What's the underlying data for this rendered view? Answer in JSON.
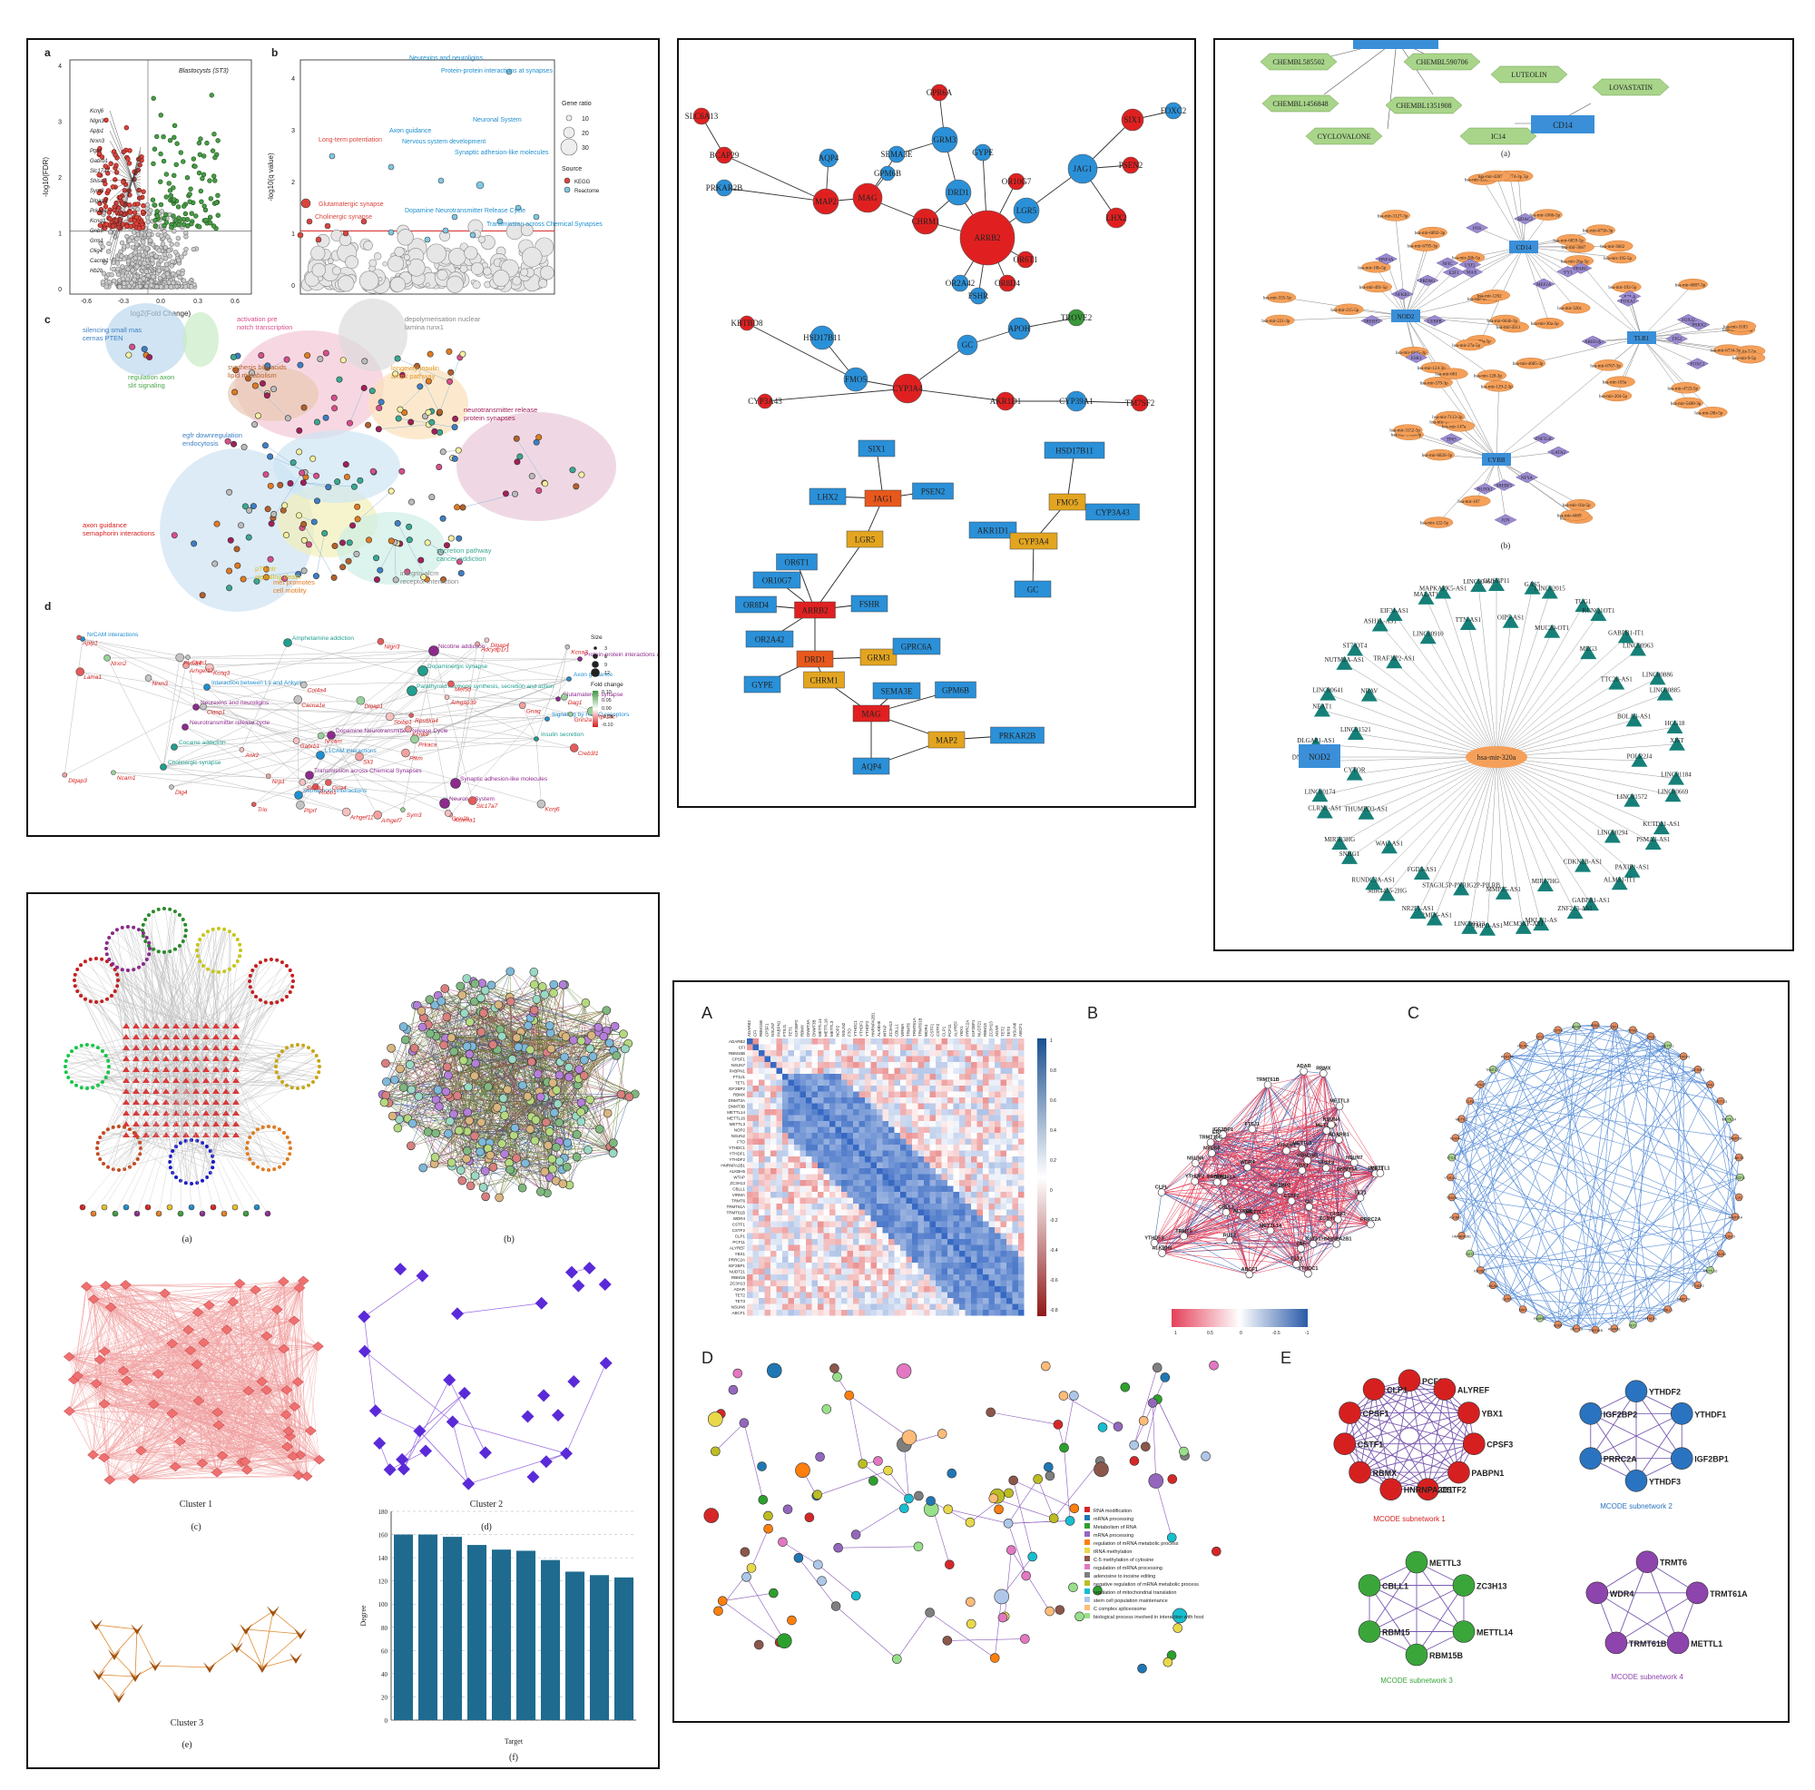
{
  "figure1": {
    "labels": {
      "a": "a",
      "b": "b",
      "c": "c",
      "d": "d"
    },
    "volcano": {
      "annotation": "Blastocysts (ST3)",
      "xlabel": "log2(Fold Change)",
      "ylabel": "-log10(FDR)",
      "xticks": [
        "-0.6",
        "-0.3",
        "0.0",
        "0.3",
        "0.6"
      ],
      "yticks": [
        "0",
        "1",
        "2",
        "3",
        "4"
      ],
      "genes": [
        "Kcnj6",
        "Nlgn3",
        "Aplp1",
        "Nrxn3",
        "Ptprf",
        "Gabrb1",
        "Slc17a7",
        "Shisa7",
        "Sym3",
        "Dlgap3",
        "Prkaca",
        "Kcnq3",
        "Gnb5",
        "Grm1",
        "Olig4",
        "Cacnb1",
        "Hb2b"
      ]
    },
    "bubble": {
      "xlabel": "",
      "ylabel": "-log10(q value)",
      "terms": [
        "Neurexins and neuroligins",
        "Protein-protein interactions at synapses",
        "Axon guidance",
        "Nervous system development",
        "Neuronal System",
        "Synaptic adhesion-like molecules",
        "Long-term potentiation",
        "Glutamatergic synapse",
        "Cholinergic synapse",
        "Dopamine Neurotransmitter Release Cycle",
        "Transmission across Chemical Synapses"
      ],
      "legend_title_size": "Gene ratio",
      "legend_sizes": [
        "10",
        "20",
        "30"
      ],
      "legend_title_source": "Source",
      "sources": [
        "KEGG",
        "Reactome"
      ]
    },
    "enrichment_clusters": [
      {
        "text": "silencing small mas cernas PTEN",
        "color": "#3d7fc4"
      },
      {
        "text": "regulation axon slit signaling",
        "color": "#4aa64a"
      },
      {
        "text": "activation pre notch transcription",
        "color": "#d64f8a"
      },
      {
        "text": "depolymerisation nuclear lamina runx1",
        "color": "#888888"
      },
      {
        "text": "synthesis bile acids lipid metabolism",
        "color": "#b5602a"
      },
      {
        "text": "longevity insulin ampk pathway",
        "color": "#e39a2a"
      },
      {
        "text": "neurotransmitter release protein synapses",
        "color": "#a0205a"
      },
      {
        "text": "egfr downregulation endocytosis",
        "color": "#3d7fc4"
      },
      {
        "text": "axon guidance semaphorin interactions",
        "color": "#d62020"
      },
      {
        "text": "p75 ntr signaling death",
        "color": "#d6c020"
      },
      {
        "text": "met promotes cell motility",
        "color": "#e07b20"
      },
      {
        "text": "secretion pathway cancer addiction",
        "color": "#3aa892"
      },
      {
        "text": "integrin alcm receptor interaction",
        "color": "#888888"
      }
    ],
    "pathway_network": {
      "pathways": [
        "NrCAM interactions",
        "Interaction between L1 and Ankyrins",
        "Dopamine Neurotransmitter Release Cycle",
        "Synaptic adhesion-like molecules",
        "Protein-protein interactions at synapses",
        "Neurexins and neuroligins",
        "L1CAM interactions",
        "Neuronal System",
        "Axon guidance",
        "Neurotransmitter release cycle",
        "Transmission across Chemical Synapses",
        "Nicotine addiction",
        "Glutamatergic synapse",
        "Cocaine addiction",
        "Semaphorin interactions",
        "Dopaminergic synapse",
        "Signaling by ROBO receptors",
        "Cholinergic synapse",
        "Amphetamine addiction",
        "Parathyroid hormone synthesis, secretion and action",
        "Insulin secretion"
      ],
      "genes": [
        "Dlgap3",
        "Nlgn3",
        "Ptprf",
        "Dlgap4",
        "Nrxn2",
        "Pfkm",
        "Aplp1",
        "Nrxn3",
        "Stxbp1",
        "Sym3",
        "Kcnk9",
        "Slc17a7",
        "Kcna3",
        "Gabrb1",
        "Dlgap1",
        "Kcnma1",
        "Gria4",
        "Cacna1e",
        "Ank2",
        "Nrcam",
        "Arhgef7",
        "Rps6ka4",
        "Col4a4",
        "Kcnq3",
        "Ncam1",
        "Arhgef12",
        "Lama1",
        "Dlg4",
        "Grin2b",
        "Prkaca",
        "Nrp1",
        "Robo1",
        "Plxna4",
        "Arhgap39",
        "Dag1",
        "Sli3",
        "Trio",
        "Clasp1",
        "Arhgef11",
        "Grin2a",
        "Gnaq",
        "Creb3l1",
        "Clrm1",
        "Slc2a1",
        "Ptpr1ac",
        "Adcyap1r1",
        "Mef5d",
        "Kcnj6"
      ],
      "legend_size": "Size",
      "legend_size_vals": [
        "3",
        "6",
        "9",
        "12"
      ],
      "legend_fold": "Fold change",
      "legend_fold_vals": [
        "0.10",
        "0.05",
        "0.00",
        "-0.05",
        "-0.10"
      ]
    }
  },
  "figure2": {
    "top_nodes": [
      {
        "label": "SLC6A13",
        "c": "r"
      },
      {
        "label": "BCAP29",
        "c": "r"
      },
      {
        "label": "PRKAR2B",
        "c": "b"
      },
      {
        "label": "AQP4",
        "c": "b"
      },
      {
        "label": "MAP2",
        "c": "r"
      },
      {
        "label": "MAG",
        "c": "r"
      },
      {
        "label": "GPM6B",
        "c": "b"
      },
      {
        "label": "SEMA3E",
        "c": "b"
      },
      {
        "label": "GPR6A",
        "c": "r"
      },
      {
        "label": "GRM3",
        "c": "b"
      },
      {
        "label": "CHRM1",
        "c": "r"
      },
      {
        "label": "DRD1",
        "c": "b"
      },
      {
        "label": "GYPE",
        "c": "b"
      },
      {
        "label": "OR10G7",
        "c": "r"
      },
      {
        "label": "ARRB2",
        "c": "r"
      },
      {
        "label": "OR2A42",
        "c": "b"
      },
      {
        "label": "FSHR",
        "c": "b"
      },
      {
        "label": "OR8D4",
        "c": "r"
      },
      {
        "label": "OR6T1",
        "c": "r"
      },
      {
        "label": "LGR5",
        "c": "b"
      },
      {
        "label": "JAG1",
        "c": "b"
      },
      {
        "label": "PSEN2",
        "c": "r"
      },
      {
        "label": "SIX1",
        "c": "r"
      },
      {
        "label": "FOXC2",
        "c": "b"
      },
      {
        "label": "LHX2",
        "c": "r"
      },
      {
        "label": "KBTBD8",
        "c": "r"
      },
      {
        "label": "HSD17B11",
        "c": "b"
      },
      {
        "label": "FMO5",
        "c": "b"
      },
      {
        "label": "CYP3A43",
        "c": "r"
      },
      {
        "label": "CYP3A4",
        "c": "r"
      },
      {
        "label": "GC",
        "c": "b"
      },
      {
        "label": "APOH",
        "c": "b"
      },
      {
        "label": "TROVE2",
        "c": "g"
      },
      {
        "label": "AKR1D1",
        "c": "r"
      },
      {
        "label": "CYP39A1",
        "c": "b"
      },
      {
        "label": "TM7SF2",
        "c": "r"
      }
    ],
    "box_nodes": [
      {
        "label": "SIX1",
        "c": "blue"
      },
      {
        "label": "LHX2",
        "c": "blue"
      },
      {
        "label": "JAG1",
        "c": "orange"
      },
      {
        "label": "PSEN2",
        "c": "blue"
      },
      {
        "label": "LGR5",
        "c": "gold"
      },
      {
        "label": "OR6T1",
        "c": "blue"
      },
      {
        "label": "OR10G7",
        "c": "blue"
      },
      {
        "label": "FSHR",
        "c": "blue"
      },
      {
        "label": "OR8D4",
        "c": "blue"
      },
      {
        "label": "ARRB2",
        "c": "red"
      },
      {
        "label": "OR2A42",
        "c": "blue"
      },
      {
        "label": "DRD1",
        "c": "orange"
      },
      {
        "label": "GRM3",
        "c": "gold"
      },
      {
        "label": "GPRC6A",
        "c": "blue"
      },
      {
        "label": "GYPE",
        "c": "blue"
      },
      {
        "label": "CHRM1",
        "c": "gold"
      },
      {
        "label": "SEMA3E",
        "c": "blue"
      },
      {
        "label": "GPM6B",
        "c": "blue"
      },
      {
        "label": "MAG",
        "c": "red"
      },
      {
        "label": "PRKAR2B",
        "c": "blue"
      },
      {
        "label": "MAP2",
        "c": "gold"
      },
      {
        "label": "AQP4",
        "c": "blue"
      },
      {
        "label": "HSD17B11",
        "c": "blue"
      },
      {
        "label": "FMO5",
        "c": "gold"
      },
      {
        "label": "CYP3A43",
        "c": "blue"
      },
      {
        "label": "AKR1D1",
        "c": "blue"
      },
      {
        "label": "CYP3A4",
        "c": "gold"
      },
      {
        "label": "GC",
        "c": "blue"
      }
    ]
  },
  "figure3": {
    "cap_a": "(a)",
    "cap_b": "(b)",
    "drugs": [
      "CHEMBL585502",
      "CHEMBL590706",
      "LUTEOLIN",
      "CHEMBL1456848",
      "CHEMBL1351908",
      "LOVASTATIN",
      "CYCLOVALONE",
      "IC14"
    ],
    "drug_targets": [
      "NOD2",
      "CD14"
    ],
    "hubs": [
      "CD14",
      "NOD2",
      "TLR1",
      "CYBB"
    ],
    "tfs": [
      "CEBPB",
      "TP53",
      "JUN",
      "PPARG",
      "ESR1",
      "FOXJ2",
      "RUNX1",
      "FOS",
      "HNF4A",
      "USF1",
      "SREBF1",
      "USF2",
      "PRDM1",
      "RELA",
      "ZNF354C",
      "MAX",
      "NFKB1",
      "FOXA1",
      "TP63",
      "HDAC2",
      "E2F1",
      "FOXC1",
      "GATA2",
      "MEF2A",
      "NFIC",
      "PRRX2",
      "NFYA",
      "YY1",
      "SREBF2",
      "ARID3A"
    ],
    "mirnas": [
      "hsa-mir-3687",
      "hsa-mir-124-3p",
      "hsa-mir-7-5p",
      "hsa-mir-100-5p",
      "hsa-mir-99a-5p",
      "hsa-mir-335-5p",
      "hsa-mir-1343-3p",
      "hsa-mir-320b",
      "hsa-mir-320a",
      "hsa-mir-215-5p",
      "hsa-mir-26b-5p",
      "hsa-mir-122-5p",
      "hsa-mir-320c",
      "hsa-mir-27a-5p",
      "hsa-mir-9-5p",
      "hsa-mir-10a-5p",
      "hsa-mir-30a-5p",
      "hsa-mir-10b-5p",
      "hsa-mir-192-5p",
      "hsa-mir-107",
      "hsa-mir-195-5p",
      "hsa-mir-491-5p",
      "hsa-mir-5480-3p",
      "hsa-mir-147a",
      "hsa-mir-3662",
      "hsa-mir-4311",
      "hsa-mir-103a",
      "hsa-mir-579-3p",
      "hsa-mir-26b-5p",
      "hsa-mir-664b-3p",
      "hsa-mir-26a-5p",
      "hsa-mir-129-2-3p",
      "hsa-mir-6859-5p",
      "hsa-mir-221-3p",
      "hsa-mir-3183",
      "hsa-mir-148b-3p",
      "hsa-mir-4640-3p",
      "hsa-mir-6892-3p",
      "hsa-mir-4685-3p",
      "hsa-mir-7113-3p",
      "hsa-mir-34a-5p",
      "hsa-mir-6845-3p",
      "hsa-mir-6887-3p",
      "hsa-mir-661",
      "hsa-mir-6756-3p",
      "hsa-mir-1262",
      "hsa-mir-6734-3p",
      "hsa-mir-6826-3p",
      "hsa-mir-4774-3p",
      "hsa-mir-3127-3p",
      "hsa-mir-6767-3p",
      "hsa-mir-4469",
      "hsa-mir-106b-5p",
      "hsa-mir-6795-3p",
      "hsa-mir-4723-5p",
      "hsa-mir-3152-5p",
      "hsa-mir-4287",
      "hsa-mir-128-3p",
      "hsa-mir-204-5p"
    ],
    "center_mirna": "hsa-mir-320a",
    "side_target": "NOD2",
    "lncrnas": [
      "GUSBP11",
      "OIP5-AS1",
      "GAS5",
      "LINC02015",
      "MUC20-OT1",
      "TUG1",
      "KCNQ1OT1",
      "MEG3",
      "GABPB1-IT1",
      "LINC00963",
      "TTC28-AS1",
      "LINC00886",
      "LINC00885",
      "BOLA3-AS1",
      "HCG18",
      "XIST",
      "POLR2J4",
      "LINC01184",
      "LINC00669",
      "LINC01572",
      "KCTD21-AS1",
      "PSMA3-AS1",
      "LINC00294",
      "PAXIP1-AS1",
      "ALMS1-IT1",
      "CDKN2B-AS1",
      "GABPB1-AS1",
      "ZNF213-AS1",
      "MIR17HG",
      "MKLN1-AS",
      "MCM3AP-AS1",
      "MMP25-AS1",
      "TMPO-AS1",
      "LINC00313",
      "STAG3L5P-PVRIG2P-PILRB",
      "FRMD6-AS1",
      "NR2F1-AS1",
      "FGD5-AS1",
      "MIR4435-2HG",
      "RUNDC3A-AS1",
      "WAC-AS1",
      "SNHG1",
      "MIR503HG",
      "THUMPD3-AS1",
      "CLRN1-AS1",
      "LINC00174",
      "CYTOR",
      "DNAAF4-CCPG1",
      "DLGAP1-AS1",
      "LINC01521",
      "NEAT1",
      "LINC00641",
      "NRAV",
      "NUTM2A-AS1",
      "ST7-OT4",
      "TRAF3IP2-AS1",
      "ASH1L-AS1",
      "EIF3J-AS1",
      "LINC00910",
      "MALAT1",
      "MAPKAPK5-AS1",
      "TTN-AS1",
      "LINC00460"
    ]
  },
  "figure4": {
    "cap_a": "(a)",
    "cap_b": "(b)",
    "cap_c": "(c)",
    "cap_d": "(d)",
    "cap_e": "(e)",
    "cap_f": "(f)",
    "cluster1": "Cluster 1",
    "cluster2": "Cluster 2",
    "cluster3": "Cluster 3",
    "bar_chart": {
      "ylabel": "Degree",
      "xlabel": "Target",
      "yticks": [
        "0",
        "20",
        "40",
        "60",
        "80",
        "100",
        "120",
        "140",
        "160",
        "180"
      ]
    }
  },
  "figure5": {
    "labels": {
      "A": "A",
      "B": "B",
      "C": "C",
      "D": "D",
      "E": "E"
    },
    "heatmap_genes": [
      "ADARB2",
      "CFI",
      "RBM15B",
      "CPSF1",
      "NSUN7",
      "PABPN1",
      "FTSJ1",
      "TET1",
      "IGF2BP2",
      "RBMX",
      "DNMT3A",
      "DNMT3B",
      "METTL14",
      "METTL16",
      "METTL3",
      "NOP2",
      "NSUN2",
      "FTO",
      "YTHDC1",
      "YTHDF1",
      "YTHDF2",
      "HNRNPA2B1",
      "ALKBH5",
      "WTAP",
      "ZC3H13",
      "CBLL1",
      "VIRMA",
      "TRMT6",
      "TRMT61A",
      "TRMT61B",
      "WDR4",
      "CSTF1",
      "CSTF2",
      "CLP1",
      "PCF11",
      "ALYREF",
      "YBX1",
      "PRRC2A",
      "IGF2BP1",
      "NUDT21",
      "RBM15",
      "ZC3H13",
      "ADAR",
      "TET2",
      "TET3",
      "NSUN6",
      "ABCF1"
    ],
    "colorbar_ticks": [
      "1",
      "0.8",
      "0.6",
      "0.4",
      "0.2",
      "0",
      "-0.2",
      "-0.4",
      "-0.6",
      "-0.8"
    ],
    "network_b": {
      "nodes": [
        "PCF11",
        "CFI",
        "TRMT61A",
        "ZC3H13",
        "NSUN3",
        "METTL16",
        "YTHDF2",
        "PRRC2A",
        "CBLL1",
        "YTHDF1",
        "TET1",
        "ADARB1",
        "TRMT61B",
        "METTL3",
        "ADAR",
        "PABPN1",
        "ERP2",
        "CSTF1",
        "NSUN6",
        "IGF2BP1",
        "RUT2",
        "HNRNPA2B1",
        "ALKBH1",
        "TRMT6",
        "YTHDC1",
        "FTSJ1",
        "NSUN4",
        "METTL5",
        "CLPL",
        "ALYREF",
        "TRMT10C",
        "RBM15B",
        "NSUN7",
        "TET2",
        "CSTF2",
        "WDR4",
        "RBMX",
        "YBX1",
        "CPSF1",
        "CPSF3",
        "METTL1",
        "YTHDF3",
        "IGF2BP2",
        "ZNF",
        "METTL3",
        "METTL14",
        "DNMT3A",
        "ABCF1"
      ],
      "colorbar_ticks": [
        "1",
        "0.5",
        "0",
        "-0.5",
        "-1"
      ]
    },
    "legend_d": [
      "RNA modification",
      "mRNA processing",
      "Metabolism of RNA",
      "mRNA processing",
      "regulation of mRNA metabolic process",
      "tRNA methylation",
      "C-5 methylation of cytosine",
      "regulation of mRNA processing",
      "adenosine to inosine editing",
      "negative regulation of mRNA metabolic process",
      "regulation of mitochondrial translation",
      "stem cell population maintenance",
      "C complex spliceosome",
      "biological process involved in interaction with host"
    ],
    "legend_d_colors": [
      "#d62728",
      "#1f77b4",
      "#2ca02c",
      "#9467bd",
      "#ff7f0e",
      "#e8d84a",
      "#8c564b",
      "#e377c2",
      "#7f7f7f",
      "#bcbd22",
      "#17becf",
      "#aec7e8",
      "#ffbb78",
      "#98df8a"
    ],
    "mcode": {
      "sub1": {
        "title": "MCODE subnetwork 1",
        "color": "#d62020",
        "nodes": [
          "PCF11",
          "ALYREF",
          "YBX1",
          "CPSF3",
          "PABPN1",
          "CSTF2",
          "HNRNPA2B1",
          "RBMX",
          "CSTF1",
          "CPSF1",
          "CLP1"
        ]
      },
      "sub2": {
        "title": "MCODE subnetwork 2",
        "color": "#2a73c0",
        "nodes": [
          "YTHDF2",
          "YTHDF1",
          "IGF2BP1",
          "YTHDF3",
          "PRRC2A",
          "IGF2BP2"
        ]
      },
      "sub3": {
        "title": "MCODE subnetwork 3",
        "color": "#3aa63a",
        "nodes": [
          "METTL3",
          "ZC3H13",
          "METTL14",
          "RBM15B",
          "RBM15",
          "CBLL1"
        ]
      },
      "sub4": {
        "title": "MCODE subnetwork 4",
        "color": "#8e44ad",
        "nodes": [
          "TRMT6",
          "TRMT61A",
          "METTL1",
          "TRMT61B",
          "WDR4"
        ]
      }
    }
  }
}
